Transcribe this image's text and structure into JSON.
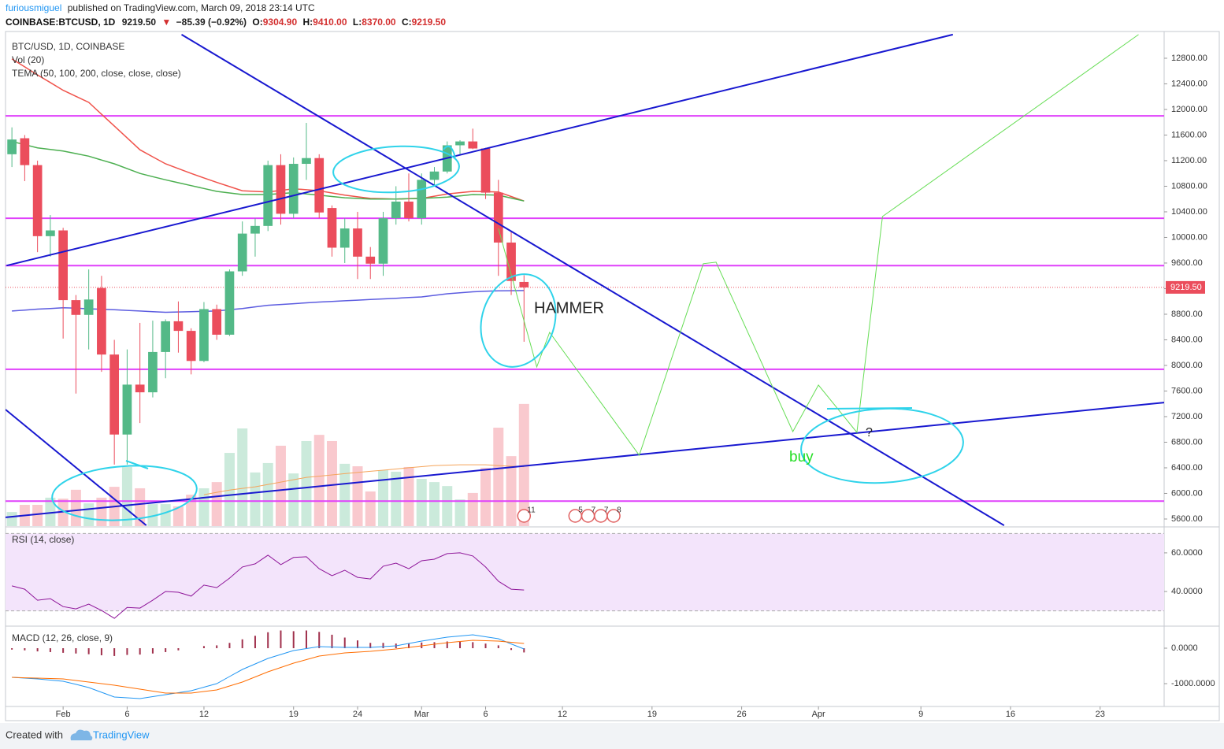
{
  "header": {
    "author": "furiousmiguel",
    "published_on": "published on TradingView.com, March 09, 2018 23:14 UTC",
    "symbol": "COINBASE:BTCUSD, 1D",
    "last": "9219.50",
    "arrow": "▼",
    "change": "−85.39 (−0.92%)",
    "o_label": "O:",
    "o": "9304.90",
    "h_label": "H:",
    "h": "9410.00",
    "l_label": "L:",
    "l": "8370.00",
    "c_label": "C:",
    "c": "9219.50"
  },
  "chart_data": {
    "type": "candlestick",
    "title": "BTC/USD, 1D, COINBASE",
    "up_color": "#53b987",
    "down_color": "#eb4d5c",
    "grid": false,
    "x": [
      "2018-01-28",
      "2018-01-29",
      "2018-01-30",
      "2018-01-31",
      "2018-02-01",
      "2018-02-02",
      "2018-02-03",
      "2018-02-04",
      "2018-02-05",
      "2018-02-06",
      "2018-02-07",
      "2018-02-08",
      "2018-02-09",
      "2018-02-10",
      "2018-02-11",
      "2018-02-12",
      "2018-02-13",
      "2018-02-14",
      "2018-02-15",
      "2018-02-16",
      "2018-02-17",
      "2018-02-18",
      "2018-02-19",
      "2018-02-20",
      "2018-02-21",
      "2018-02-22",
      "2018-02-23",
      "2018-02-24",
      "2018-02-25",
      "2018-02-26",
      "2018-02-27",
      "2018-02-28",
      "2018-03-01",
      "2018-03-02",
      "2018-03-03",
      "2018-03-04",
      "2018-03-05",
      "2018-03-06",
      "2018-03-07",
      "2018-03-08",
      "2018-03-09"
    ],
    "open": [
      11300,
      11550,
      11130,
      10020,
      10110,
      9020,
      8790,
      9210,
      8170,
      6920,
      7700,
      7580,
      8210,
      8690,
      8540,
      8070,
      8880,
      8480,
      9470,
      10060,
      10180,
      11130,
      10370,
      11150,
      11240,
      10460,
      9840,
      10140,
      9700,
      9590,
      10300,
      10560,
      10300,
      10900,
      11030,
      11440,
      11500,
      11390,
      10700,
      9920,
      9304.9
    ],
    "high": [
      11720,
      11600,
      11200,
      10350,
      10150,
      9100,
      9500,
      9400,
      8400,
      8250,
      8665,
      8700,
      8720,
      9000,
      8580,
      8990,
      8950,
      9500,
      10250,
      10300,
      11200,
      11300,
      11250,
      11790,
      11300,
      10500,
      10300,
      10400,
      9850,
      10400,
      10800,
      11000,
      11000,
      11100,
      11500,
      11520,
      11700,
      11400,
      10900,
      10100,
      9410
    ],
    "low": [
      11100,
      10880,
      9770,
      9700,
      8420,
      7560,
      8250,
      7900,
      6450,
      6450,
      7100,
      7500,
      7800,
      8200,
      7860,
      8050,
      8400,
      8460,
      9400,
      9700,
      10100,
      10200,
      10300,
      10900,
      10300,
      9700,
      9600,
      9350,
      9350,
      9400,
      10200,
      10250,
      10200,
      10800,
      11000,
      11300,
      11380,
      10600,
      9400,
      9100,
      8370
    ],
    "close": [
      11530,
      11130,
      10020,
      10110,
      9020,
      8790,
      9030,
      8170,
      6920,
      7700,
      7580,
      8210,
      8690,
      8540,
      8070,
      8880,
      8480,
      9470,
      10060,
      10180,
      11130,
      10370,
      11150,
      11240,
      10390,
      9840,
      10140,
      9700,
      9590,
      10300,
      10560,
      10300,
      10900,
      11030,
      11440,
      11500,
      11390,
      10700,
      9920,
      9320,
      9219.5
    ],
    "xlim": [
      "2018-01-27T12:00:00Z",
      "2018-04-28T00:00:00Z"
    ],
    "xticks": [
      {
        "value": "2018-02-01",
        "label": "Feb"
      },
      {
        "value": "2018-02-06",
        "label": "6"
      },
      {
        "value": "2018-02-12",
        "label": "12"
      },
      {
        "value": "2018-02-19",
        "label": "19"
      },
      {
        "value": "2018-02-24",
        "label": "24"
      },
      {
        "value": "2018-03-01",
        "label": "Mar"
      },
      {
        "value": "2018-03-06",
        "label": "6"
      },
      {
        "value": "2018-03-12",
        "label": "12"
      },
      {
        "value": "2018-03-19",
        "label": "19"
      },
      {
        "value": "2018-03-26",
        "label": "26"
      },
      {
        "value": "2018-04-01",
        "label": "Apr"
      },
      {
        "value": "2018-04-09",
        "label": "9"
      },
      {
        "value": "2018-04-16",
        "label": "16"
      },
      {
        "value": "2018-04-23",
        "label": "23"
      }
    ],
    "ylim": [
      5489,
      13218
    ],
    "yticks": [
      {
        "value": 5600,
        "label": "5600.00"
      },
      {
        "value": 6000,
        "label": "6000.00"
      },
      {
        "value": 6400,
        "label": "6400.00"
      },
      {
        "value": 6800,
        "label": "6800.00"
      },
      {
        "value": 7200,
        "label": "7200.00"
      },
      {
        "value": 7600,
        "label": "7600.00"
      },
      {
        "value": 8000,
        "label": "8000.00"
      },
      {
        "value": 8400,
        "label": "8400.00"
      },
      {
        "value": 8800,
        "label": "8800.00"
      },
      {
        "value": 9200,
        "label": "9200.00"
      },
      {
        "value": 9600,
        "label": "9600.00"
      },
      {
        "value": 10000,
        "label": "10000.00"
      },
      {
        "value": 10400,
        "label": "10400.00"
      },
      {
        "value": 10800,
        "label": "10800.00"
      },
      {
        "value": 11200,
        "label": "11200.00"
      },
      {
        "value": 11600,
        "label": "11600.00"
      },
      {
        "value": 12000,
        "label": "12000.00"
      },
      {
        "value": 12400,
        "label": "12400.00"
      },
      {
        "value": 12800,
        "label": "12800.00"
      }
    ],
    "last_price": {
      "value": 9219.5,
      "label": "9219.50",
      "color": "#eb4d5c"
    },
    "volume": {
      "title": "Vol (20)",
      "ylim": [
        0,
        200000
      ],
      "up_color": "rgba(83,185,135,0.3)",
      "down_color": "rgba(235,77,92,0.3)",
      "values": [
        5700,
        8600,
        8600,
        11500,
        11100,
        14700,
        9200,
        11500,
        15900,
        23900,
        15300,
        8900,
        8900,
        8000,
        12700,
        15300,
        17800,
        29600,
        39500,
        21700,
        25500,
        32500,
        21300,
        34400,
        36900,
        34400,
        25200,
        24200,
        14000,
        22600,
        22000,
        23900,
        19100,
        17800,
        16200,
        10800,
        13400,
        23600,
        39800,
        28300,
        49400
      ],
      "ma_color": "#f5a45a",
      "ma": [
        null,
        null,
        null,
        null,
        null,
        null,
        null,
        null,
        null,
        null,
        null,
        null,
        null,
        null,
        null,
        12700,
        13650,
        14600,
        15250,
        15900,
        16850,
        17800,
        18750,
        19700,
        20200,
        20700,
        21200,
        21700,
        22150,
        22600,
        23100,
        23600,
        24050,
        24500,
        24650,
        24800,
        24800,
        24800,
        24500,
        24200,
        24000
      ]
    },
    "tema": {
      "title": "TEMA (50, 100, 200, close, close, close)",
      "lines": [
        {
          "color": "#f0534b",
          "values": [
            12790,
            12665,
            12540,
            12420,
            12300,
            12205,
            12110,
            11925,
            11740,
            11555,
            11370,
            11260,
            11150,
            11075,
            11000,
            10930,
            10860,
            10795,
            10730,
            10720,
            10710,
            10735,
            10760,
            10745,
            10730,
            10695,
            10660,
            10635,
            10610,
            10605,
            10600,
            10605,
            10610,
            10645,
            10680,
            10700,
            10720,
            10715,
            10710,
            10640,
            10570
          ]
        },
        {
          "color": "#4caf50",
          "values": [
            11500,
            11450,
            11400,
            11375,
            11350,
            11310,
            11270,
            11210,
            11150,
            11075,
            11000,
            10950,
            10900,
            10855,
            10810,
            10765,
            10720,
            10695,
            10670,
            10670,
            10670,
            10685,
            10700,
            10680,
            10660,
            10640,
            10620,
            10610,
            10600,
            10600,
            10600,
            10605,
            10610,
            10620,
            10630,
            10650,
            10670,
            10665,
            10660,
            10615,
            10570
          ]
        },
        {
          "color": "#5c5ce0",
          "values": [
            8850,
            8865,
            8880,
            8890,
            8900,
            8895,
            8885,
            8878,
            8870,
            8860,
            8850,
            8840,
            8830,
            8835,
            8840,
            8845,
            8850,
            8870,
            8890,
            8915,
            8940,
            8952,
            8965,
            8978,
            8990,
            9000,
            9010,
            9020,
            9030,
            9040,
            9050,
            9060,
            9070,
            9095,
            9120,
            9135,
            9150,
            9160,
            9165,
            9168,
            9170
          ]
        }
      ]
    },
    "levels": {
      "color": "#e040fb",
      "values": [
        11900,
        10300,
        9560,
        7940,
        5880
      ]
    },
    "trendlines": {
      "color": "#1818d0",
      "lines": [
        {
          "x": [
            "2018-01-27T14:00:00Z",
            "2018-04-11T12:00:00Z"
          ],
          "values": [
            9560,
            13170
          ]
        },
        {
          "x": [
            "2018-02-10T06:00:00Z",
            "2018-04-15T12:00:00Z"
          ],
          "values": [
            13170,
            5500
          ]
        },
        {
          "x": [
            "2018-01-27T12:00:00Z",
            "2018-04-28T00:00:00Z"
          ],
          "values": [
            5625,
            7420
          ]
        },
        {
          "x": [
            "2018-01-27T12:00:00Z",
            "2018-02-07T12:00:00Z"
          ],
          "values": [
            7310,
            5500
          ]
        }
      ]
    },
    "projection": {
      "color": "#66dd55",
      "x": [
        "2018-03-07",
        "2018-03-10",
        "2018-03-11",
        "2018-03-18",
        "2018-03-23",
        "2018-03-24",
        "2018-03-30",
        "2018-04-01",
        "2018-04-04",
        "2018-04-06",
        "2018-04-26"
      ],
      "values": [
        10140,
        7976,
        8517,
        6597,
        9590,
        9613,
        6966,
        7693,
        6954,
        10327,
        13170
      ]
    },
    "annotations": [
      "HAMMER",
      "buy",
      "?"
    ],
    "events": [
      {
        "x": "2018-03-09",
        "label": "11"
      },
      {
        "x": "2018-03-13",
        "label": "5"
      },
      {
        "x": "2018-03-14",
        "label": "7"
      },
      {
        "x": "2018-03-15",
        "label": "7"
      },
      {
        "x": "2018-03-16",
        "label": "8"
      }
    ],
    "rsi": {
      "title": "RSI (14, close)",
      "color": "#8e1599",
      "band_color": "#f3e4fb",
      "ylim": [
        22.9,
        72.2
      ],
      "yticks": [
        {
          "value": 40,
          "label": "40.0000"
        },
        {
          "value": 60,
          "label": "60.0000"
        }
      ],
      "bands": [
        30,
        70
      ],
      "values": [
        42.9,
        41.2,
        35.5,
        36.3,
        32.2,
        31.0,
        33.5,
        30.2,
        26.1,
        31.8,
        31.4,
        35.5,
        40,
        39.6,
        37.6,
        43.3,
        42.0,
        46.9,
        52.7,
        54.3,
        58.8,
        53.9,
        57.6,
        58.0,
        51.8,
        48.2,
        51.0,
        47.3,
        46.5,
        53.1,
        54.7,
        51.8,
        55.9,
        56.7,
        59.6,
        60,
        58.4,
        52.7,
        45.3,
        41.2,
        40.8
      ]
    },
    "macd": {
      "title": "MACD (12, 26, close, 9)",
      "ylim": [
        -1644,
        578
      ],
      "yticks": [
        {
          "value": 0,
          "label": "0.0000"
        },
        {
          "value": -1000,
          "label": "-1000.0000"
        }
      ],
      "macd_color": "#2196f3",
      "signal_color": "#ff6d00",
      "hist_color": "#a0304c",
      "macd": [
        -822,
        -845,
        -867,
        -900,
        -933,
        -1020,
        -1111,
        -1245,
        -1378,
        -1400,
        -1422,
        -1367,
        -1311,
        -1255,
        -1200,
        -1100,
        -1000,
        -800,
        -600,
        -445,
        -289,
        -178,
        -67,
        -10,
        44,
        33,
        22,
        22,
        22,
        45,
        67,
        133,
        200,
        255,
        311,
        345,
        378,
        322,
        267,
        120,
        -22
      ],
      "signal": [
        -822,
        -835,
        -845,
        -856,
        -867,
        -910,
        -955,
        -1000,
        -1044,
        -1100,
        -1155,
        -1210,
        -1267,
        -1267,
        -1267,
        -1222,
        -1178,
        -1067,
        -956,
        -811,
        -667,
        -545,
        -422,
        -322,
        -222,
        -178,
        -133,
        -111,
        -89,
        -55,
        -22,
        22,
        67,
        111,
        156,
        189,
        222,
        211,
        200,
        167,
        133
      ],
      "histogram": [
        -40,
        -60,
        -90,
        -110,
        -130,
        -150,
        -170,
        -200,
        -220,
        -190,
        -180,
        -150,
        -110,
        -60,
        0,
        60,
        80,
        150,
        250,
        350,
        450,
        500,
        480,
        500,
        460,
        380,
        300,
        220,
        150,
        150,
        130,
        140,
        160,
        170,
        190,
        180,
        170,
        130,
        80,
        -50,
        -120
      ]
    }
  },
  "footer": {
    "created": "Created with",
    "brand": "TradingView"
  }
}
